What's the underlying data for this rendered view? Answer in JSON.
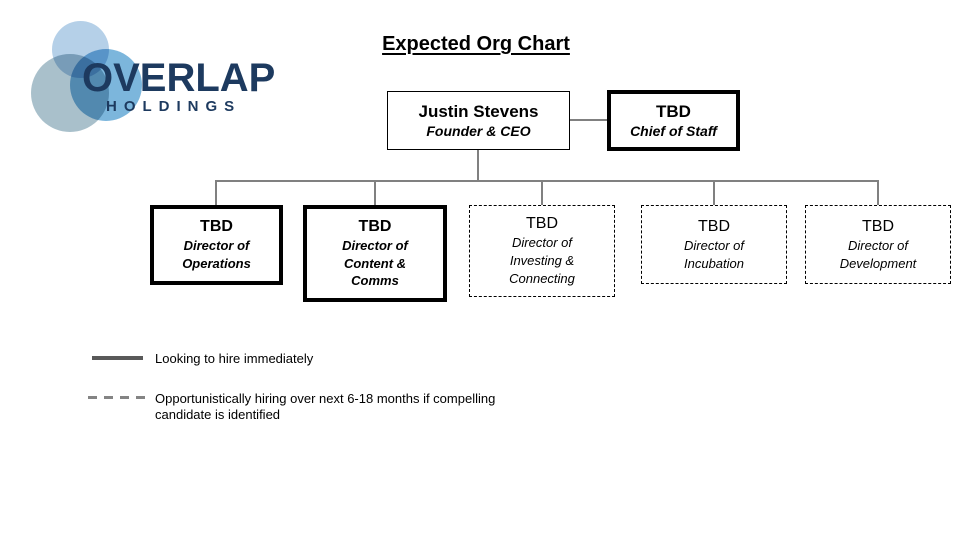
{
  "logo": {
    "word": "OVERLAP",
    "sub": "HOLDINGS",
    "navy": "#1d3a5f",
    "circle_colors": {
      "top": "#b5d0e8",
      "bottom_left": "#a9c0cb",
      "right": "#7cb6dc"
    }
  },
  "title": "Expected Org Chart",
  "org": {
    "ceo": {
      "name": "Justin Stevens",
      "role": "Founder & CEO",
      "border": "solid-thin"
    },
    "chief_of_staff": {
      "name": "TBD",
      "role": "Chief of Staff",
      "border": "solid-thick"
    },
    "directors": [
      {
        "name": "TBD",
        "role": "Director of Operations",
        "border": "solid-thick"
      },
      {
        "name": "TBD",
        "role": "Director of Content & Comms",
        "border": "solid-thick"
      },
      {
        "name": "TBD",
        "role": "Director of Investing & Connecting",
        "border": "dashed"
      },
      {
        "name": "TBD",
        "role": "Director of Incubation",
        "border": "dashed"
      },
      {
        "name": "TBD",
        "role": "Director of Development",
        "border": "dashed"
      }
    ]
  },
  "legend": {
    "items": [
      {
        "style": "solid",
        "label": "Looking to hire immediately"
      },
      {
        "style": "dashed",
        "label": "Opportunistically hiring over next 6-18 months if compelling candidate is identified"
      }
    ]
  },
  "colors": {
    "connector": "#808080",
    "box_border": "#000000",
    "legend_solid_line": "#595959",
    "legend_dashed_line": "#848484",
    "background": "#ffffff"
  }
}
